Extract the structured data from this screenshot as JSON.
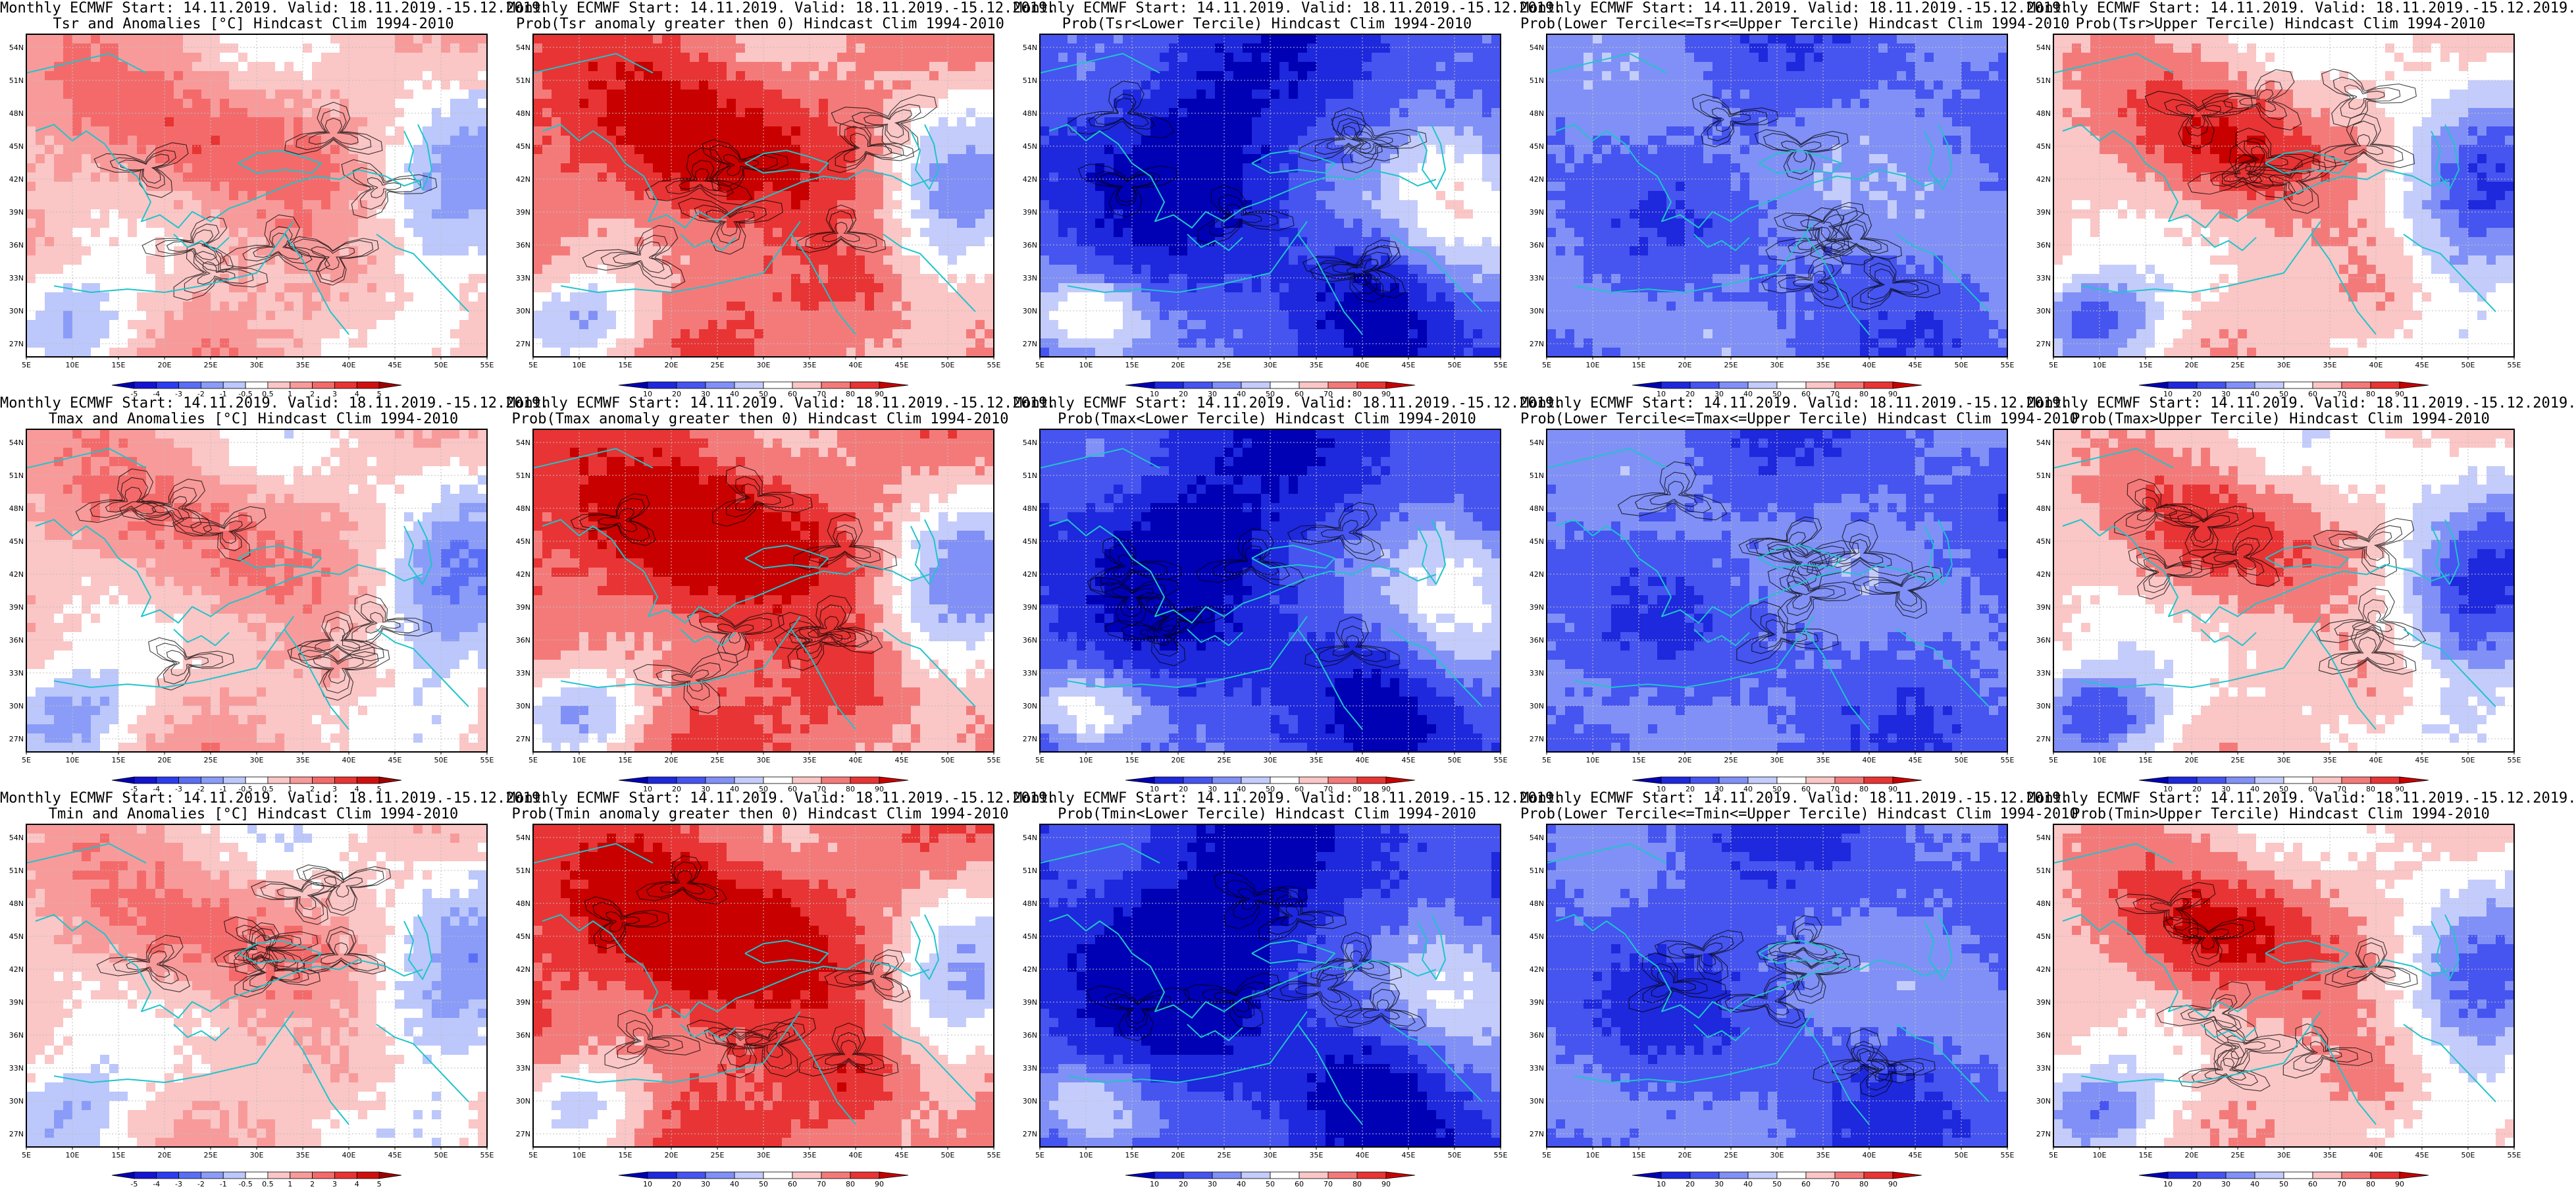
{
  "figure": {
    "panels": [
      {
        "title1": "Monthly ECMWF Start: 14.11.2019. Valid: 18.11.2019.-15.12.2019.",
        "title2": "Tsr and Anomalies [°C] Hindcast Clim 1994-2010",
        "colorbar": "anomaly",
        "field": {
          "base": 0.5,
          "warm": 1.1,
          "cool": -1.2,
          "mode": "anom"
        }
      },
      {
        "title1": "Monthly ECMWF Start: 14.11.2019. Valid: 18.11.2019.-15.12.2019.",
        "title2": "Prob(Tsr anomaly greater then 0) Hindcast Clim 1994-2010",
        "colorbar": "prob",
        "field": {
          "base": 1.4,
          "warm": 1.8,
          "cool": -2.2,
          "mode": "prob"
        }
      },
      {
        "title1": "Monthly ECMWF Start: 14.11.2019. Valid: 18.11.2019.-15.12.2019.",
        "title2": "Prob(Tsr<Lower Tercile) Hindcast Clim 1994-2010",
        "colorbar": "prob",
        "field": {
          "base": -1.8,
          "warm": -1.0,
          "cool": 2.6,
          "mode": "prob"
        }
      },
      {
        "title1": "Monthly ECMWF Start: 14.11.2019. Valid: 18.11.2019.-15.12.2019.",
        "title2": "Prob(Lower Tercile<=Tsr<=Upper Tercile) Hindcast Clim 1994-2010",
        "colorbar": "prob",
        "field": {
          "base": -1.3,
          "warm": 0.2,
          "cool": 0.6,
          "mode": "prob"
        }
      },
      {
        "title1": "Monthly ECMWF Start: 14.11.2019. Valid: 18.11.2019.-15.12.2019.",
        "title2": "Prob(Tsr>Upper Tercile) Hindcast Clim 1994-2010",
        "colorbar": "prob",
        "field": {
          "base": 0.6,
          "warm": 2.0,
          "cool": -2.2,
          "mode": "prob"
        }
      },
      {
        "title1": "Monthly ECMWF Start: 14.11.2019. Valid: 18.11.2019.-15.12.2019.",
        "title2": "Tmax and Anomalies [°C] Hindcast Clim 1994-2010",
        "colorbar": "anomaly",
        "field": {
          "base": 0.4,
          "warm": 1.0,
          "cool": -1.4,
          "mode": "anom"
        }
      },
      {
        "title1": "Monthly ECMWF Start: 14.11.2019. Valid: 18.11.2019.-15.12.2019.",
        "title2": "Prob(Tmax anomaly greater then 0) Hindcast Clim 1994-2010",
        "colorbar": "prob",
        "field": {
          "base": 1.5,
          "warm": 1.9,
          "cool": -2.4,
          "mode": "prob"
        }
      },
      {
        "title1": "Monthly ECMWF Start: 14.11.2019. Valid: 18.11.2019.-15.12.2019.",
        "title2": "Prob(Tmax<Lower Tercile) Hindcast Clim 1994-2010",
        "colorbar": "prob",
        "field": {
          "base": -1.9,
          "warm": -0.8,
          "cool": 2.4,
          "mode": "prob"
        }
      },
      {
        "title1": "Monthly ECMWF Start: 14.11.2019. Valid: 18.11.2019.-15.12.2019.",
        "title2": "Prob(Lower Tercile<=Tmax<=Upper Tercile) Hindcast Clim 1994-2010",
        "colorbar": "prob",
        "field": {
          "base": -1.4,
          "warm": 0.3,
          "cool": 0.4,
          "mode": "prob"
        }
      },
      {
        "title1": "Monthly ECMWF Start: 14.11.2019. Valid: 18.11.2019.-15.12.2019.",
        "title2": "Prob(Tmax>Upper Tercile) Hindcast Clim 1994-2010",
        "colorbar": "prob",
        "field": {
          "base": 0.5,
          "warm": 1.9,
          "cool": -2.4,
          "mode": "prob"
        }
      },
      {
        "title1": "Monthly ECMWF Start: 14.11.2019. Valid: 18.11.2019.-15.12.2019.",
        "title2": "Tmin and Anomalies [°C] Hindcast Clim 1994-2010",
        "colorbar": "anomaly",
        "field": {
          "base": 0.3,
          "warm": 1.2,
          "cool": -1.0,
          "mode": "anom"
        }
      },
      {
        "title1": "Monthly ECMWF Start: 14.11.2019. Valid: 18.11.2019.-15.12.2019.",
        "title2": "Prob(Tmin anomaly greater then 0) Hindcast Clim 1994-2010",
        "colorbar": "prob",
        "field": {
          "base": 1.6,
          "warm": 2.0,
          "cool": -2.0,
          "mode": "prob"
        }
      },
      {
        "title1": "Monthly ECMWF Start: 14.11.2019. Valid: 18.11.2019.-15.12.2019.",
        "title2": "Prob(Tmin<Lower Tercile) Hindcast Clim 1994-2010",
        "colorbar": "prob",
        "field": {
          "base": -2.0,
          "warm": -1.2,
          "cool": 2.2,
          "mode": "prob"
        }
      },
      {
        "title1": "Monthly ECMWF Start: 14.11.2019. Valid: 18.11.2019.-15.12.2019.",
        "title2": "Prob(Lower Tercile<=Tmin<=Upper Tercile) Hindcast Clim 1994-2010",
        "colorbar": "prob",
        "field": {
          "base": -1.5,
          "warm": 0.0,
          "cool": 0.8,
          "mode": "prob"
        }
      },
      {
        "title1": "Monthly ECMWF Start: 14.11.2019. Valid: 18.11.2019.-15.12.2019.",
        "title2": "Prob(Tmin>Upper Tercile) Hindcast Clim 1994-2010",
        "colorbar": "prob",
        "field": {
          "base": 0.7,
          "warm": 2.1,
          "cool": -2.0,
          "mode": "prob"
        }
      }
    ],
    "axes": {
      "lon_ticks": [
        "5E",
        "10E",
        "15E",
        "20E",
        "25E",
        "30E",
        "35E",
        "40E",
        "45E",
        "50E",
        "55E"
      ],
      "lat_ticks": [
        "54N",
        "51N",
        "48N",
        "45N",
        "42N",
        "39N",
        "36N",
        "33N",
        "30N",
        "27N"
      ]
    },
    "colorbars": {
      "anomaly": {
        "labels": [
          "-5",
          "-4",
          "-3",
          "-2",
          "-1",
          "-0.5",
          "0.5",
          "1",
          "2",
          "3",
          "4",
          "5"
        ],
        "colors": [
          "#0000b4",
          "#1414d2",
          "#2c3cf0",
          "#5a6ef5",
          "#8a9cf8",
          "#bcc7fb",
          "#ffffff",
          "#fbc6c6",
          "#f89a9a",
          "#f46a6a",
          "#e83434",
          "#d20f0f",
          "#a00000"
        ]
      },
      "prob": {
        "labels": [
          "10",
          "20",
          "30",
          "40",
          "50",
          "60",
          "70",
          "80",
          "90"
        ],
        "colors": [
          "#0000b4",
          "#1e28dc",
          "#4654f0",
          "#8090f6",
          "#c4ccfb",
          "#ffffff",
          "#fbc6c6",
          "#f47a7a",
          "#e83434",
          "#c80000"
        ]
      }
    },
    "map_colors": {
      "contour": "#000000",
      "coast": "#1fc4cc",
      "grid": "#bfbfbf",
      "frame": "#000000"
    }
  }
}
